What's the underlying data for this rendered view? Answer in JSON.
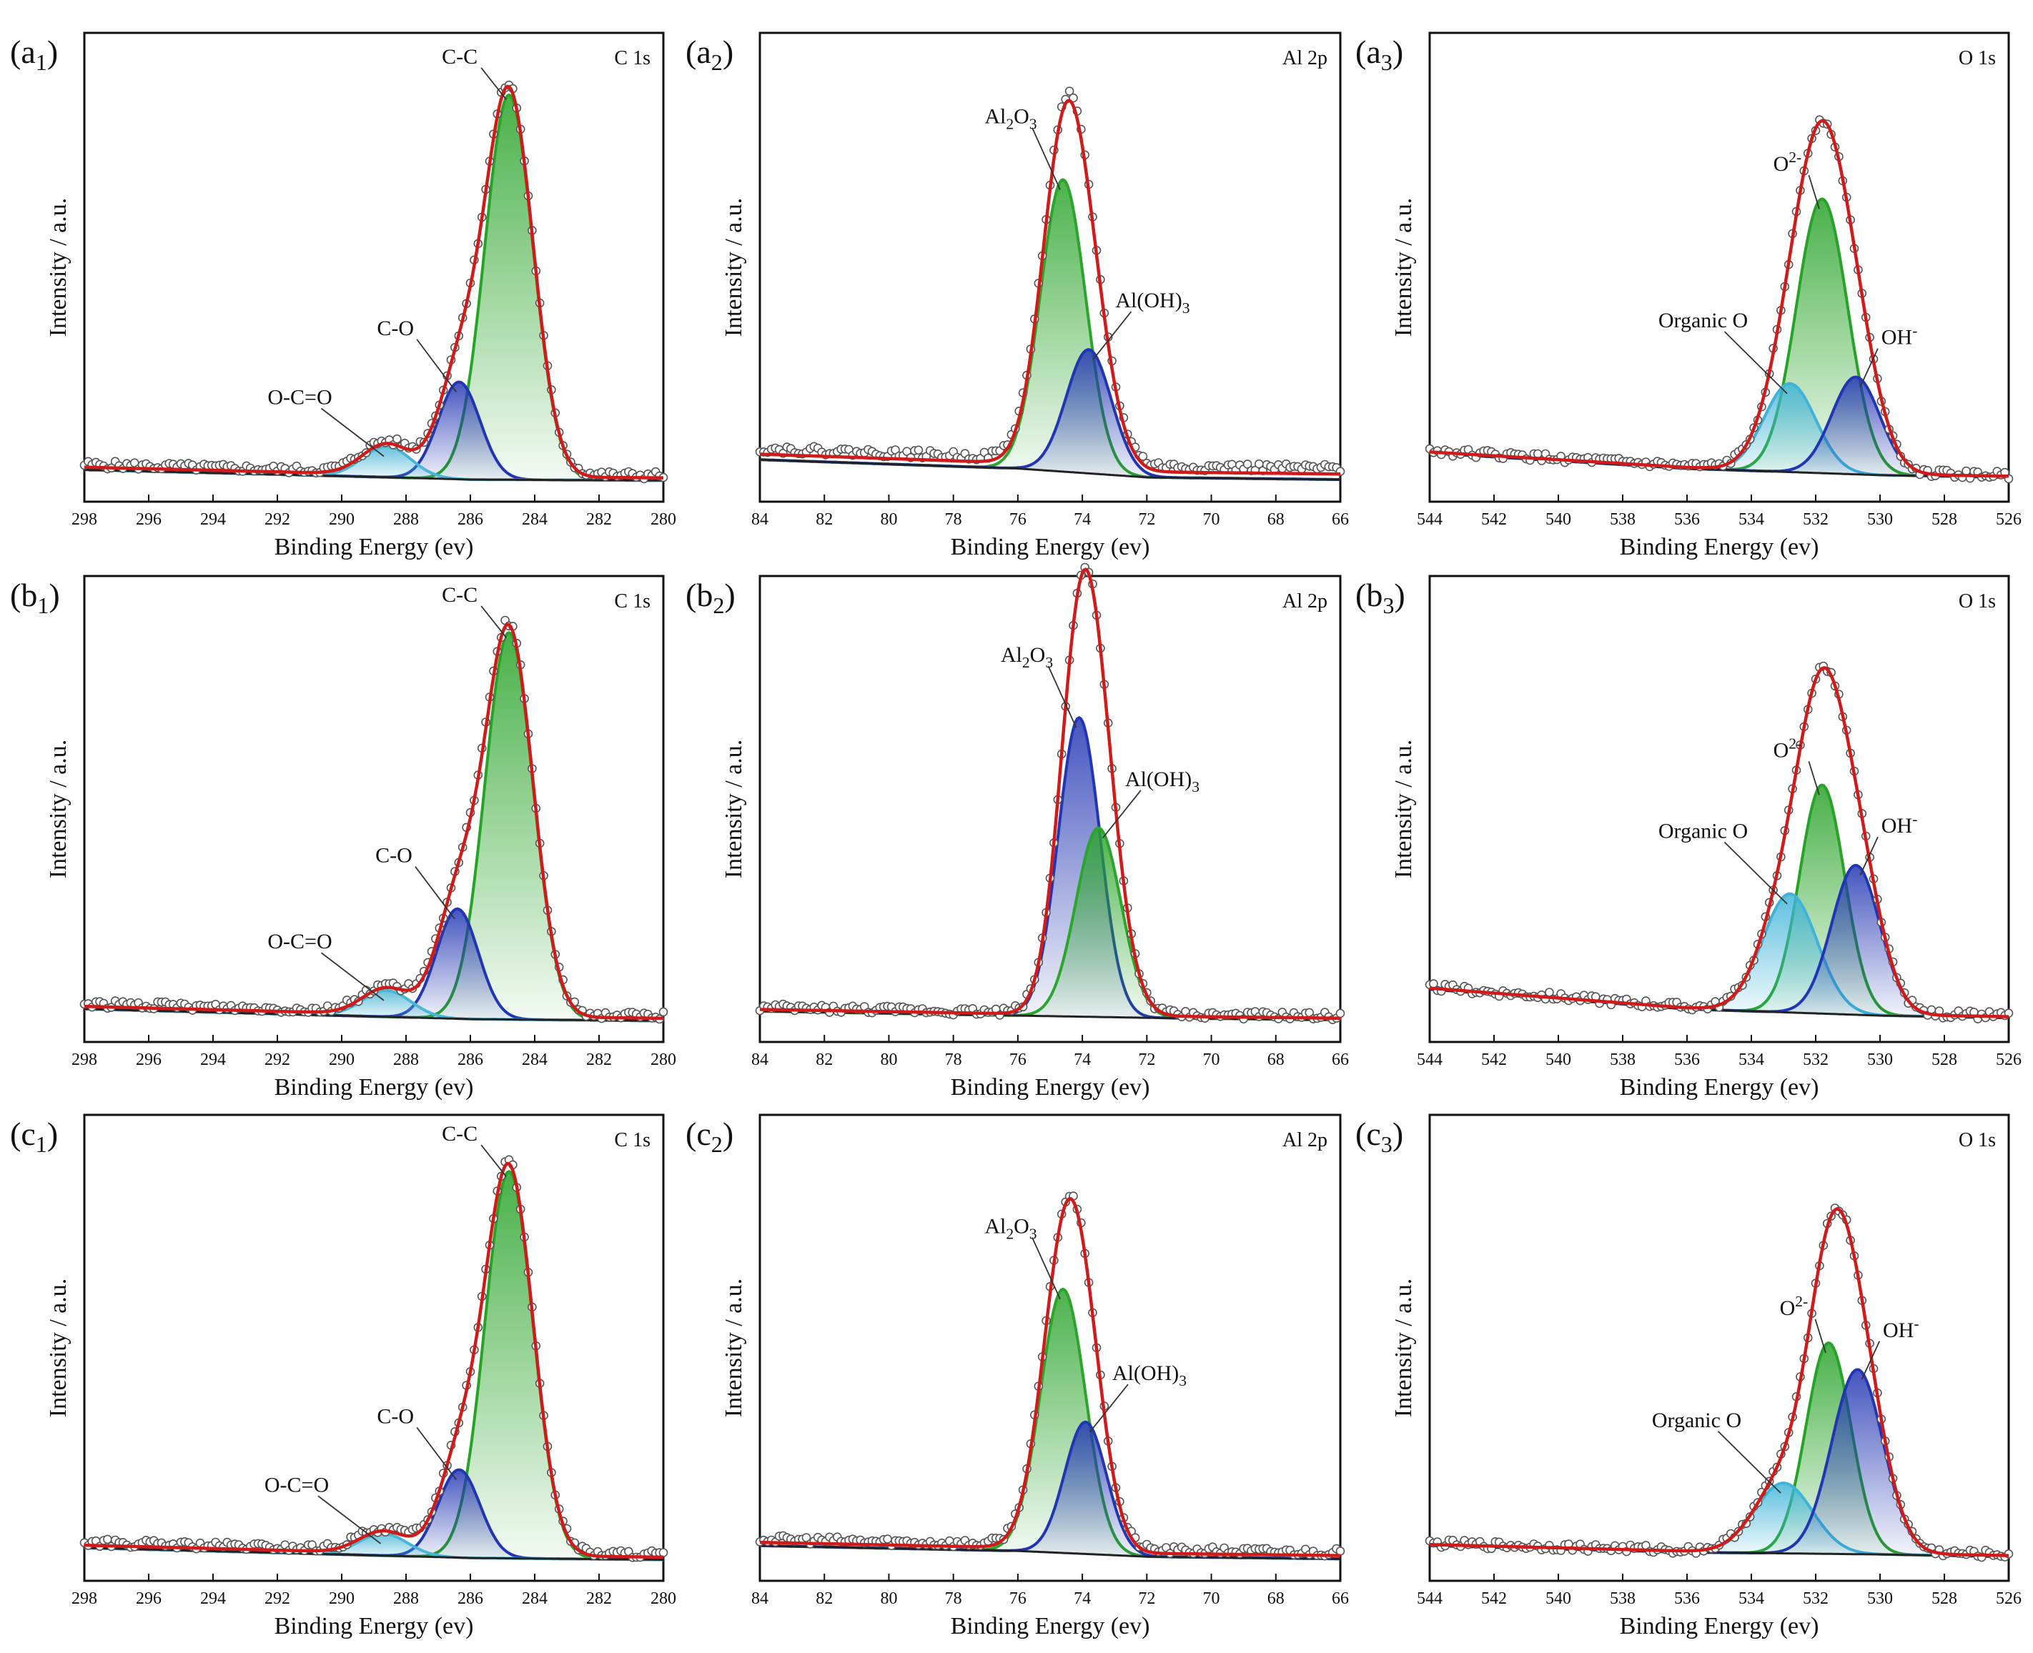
{
  "figure": {
    "xlabel": "Binding Energy (ev)",
    "ylabel": "Intensity / a.u."
  },
  "colors": {
    "envelope": "#d11a1a",
    "raw": "#555555",
    "background": "#222222",
    "cc": "#27a327",
    "co": "#2236b3",
    "oco": "#4ab6d6",
    "al2o3": "#2ba52b",
    "aloh": "#2236b3",
    "o2": "#27a327",
    "oh": "#2236b3",
    "organic": "#3fb4d8"
  },
  "chart_data": [
    {
      "id": "a1",
      "panel_label": "(a1)",
      "element": "C 1s",
      "type": "line",
      "xlim": [
        298,
        280
      ],
      "xticks": [
        298,
        296,
        294,
        292,
        290,
        288,
        286,
        284,
        282,
        280
      ],
      "baseline": [
        [
          298,
          0.012
        ],
        [
          290,
          -0.002
        ],
        [
          286,
          -0.01
        ],
        [
          280,
          -0.012
        ]
      ],
      "raw_offset": 0.012,
      "peaks": [
        {
          "name": "C-C",
          "center": 284.8,
          "height": 0.87,
          "sigma": 0.75,
          "color": "cc",
          "label": "C-C"
        },
        {
          "name": "C-O",
          "center": 286.35,
          "height": 0.22,
          "sigma": 0.65,
          "color": "co",
          "label": "C-O"
        },
        {
          "name": "O-C=O",
          "center": 288.6,
          "height": 0.07,
          "sigma": 0.75,
          "color": "oco",
          "label": "O-C=O"
        }
      ]
    },
    {
      "id": "a2",
      "panel_label": "(a2)",
      "element": "Al 2p",
      "type": "line",
      "xlim": [
        84,
        66
      ],
      "xticks": [
        84,
        82,
        80,
        78,
        76,
        74,
        72,
        70,
        68,
        66
      ],
      "baseline": [
        [
          84,
          0.035
        ],
        [
          76,
          0.015
        ],
        [
          72,
          -0.005
        ],
        [
          66,
          -0.01
        ]
      ],
      "raw_offset": 0.025,
      "peaks": [
        {
          "name": "Al2O3",
          "center": 74.6,
          "height": 0.66,
          "sigma": 0.7,
          "color": "al2o3",
          "label": "Al2O3"
        },
        {
          "name": "Al(OH)3",
          "center": 73.8,
          "height": 0.28,
          "sigma": 0.7,
          "color": "aloh",
          "label": "Al(OH)3"
        }
      ]
    },
    {
      "id": "a3",
      "panel_label": "(a3)",
      "element": "O 1s",
      "type": "line",
      "xlim": [
        544,
        526
      ],
      "xticks": [
        544,
        542,
        540,
        538,
        536,
        534,
        532,
        530,
        528,
        526
      ],
      "baseline": [
        [
          544,
          0.05
        ],
        [
          536,
          0.015
        ],
        [
          530,
          0.0
        ],
        [
          526,
          -0.005
        ]
      ],
      "raw_offset": 0.005,
      "peaks": [
        {
          "name": "O2-",
          "center": 531.8,
          "height": 0.62,
          "sigma": 0.8,
          "color": "o2",
          "label": "O2-"
        },
        {
          "name": "Organic O",
          "center": 532.8,
          "height": 0.2,
          "sigma": 0.8,
          "color": "organic",
          "label": "Organic O"
        },
        {
          "name": "OH-",
          "center": 530.75,
          "height": 0.22,
          "sigma": 0.75,
          "color": "oh",
          "label": "OH-"
        }
      ]
    },
    {
      "id": "b1",
      "panel_label": "(b1)",
      "element": "C 1s",
      "type": "line",
      "xlim": [
        298,
        280
      ],
      "xticks": [
        298,
        296,
        294,
        292,
        290,
        288,
        286,
        284,
        282,
        280
      ],
      "baseline": [
        [
          298,
          0.015
        ],
        [
          290,
          0.0
        ],
        [
          286,
          -0.008
        ],
        [
          280,
          -0.012
        ]
      ],
      "raw_offset": 0.012,
      "peaks": [
        {
          "name": "C-C",
          "center": 284.8,
          "height": 0.88,
          "sigma": 0.75,
          "color": "cc",
          "label": "C-C"
        },
        {
          "name": "C-O",
          "center": 286.4,
          "height": 0.25,
          "sigma": 0.65,
          "color": "co",
          "label": "C-O"
        },
        {
          "name": "O-C=O",
          "center": 288.6,
          "height": 0.06,
          "sigma": 0.75,
          "color": "oco",
          "label": "O-C=O"
        }
      ]
    },
    {
      "id": "b2",
      "panel_label": "(b2)",
      "element": "Al 2p",
      "type": "line",
      "xlim": [
        84,
        66
      ],
      "xticks": [
        84,
        82,
        80,
        78,
        76,
        74,
        72,
        70,
        68,
        66
      ],
      "baseline": [
        [
          84,
          0.01
        ],
        [
          76,
          0.0
        ],
        [
          72,
          -0.005
        ],
        [
          66,
          -0.01
        ]
      ],
      "raw_offset": 0.008,
      "peaks": [
        {
          "name": "Al2O3",
          "center": 74.1,
          "height": 0.68,
          "sigma": 0.65,
          "color": "aloh",
          "label": "Al2O3"
        },
        {
          "name": "Al(OH)3",
          "center": 73.5,
          "height": 0.43,
          "sigma": 0.7,
          "color": "al2o3",
          "label": "Al(OH)3"
        }
      ]
    },
    {
      "id": "b3",
      "panel_label": "(b3)",
      "element": "O 1s",
      "type": "line",
      "xlim": [
        544,
        526
      ],
      "xticks": [
        544,
        542,
        540,
        538,
        536,
        534,
        532,
        530,
        528,
        526
      ],
      "baseline": [
        [
          544,
          0.06
        ],
        [
          536,
          0.015
        ],
        [
          530,
          0.0
        ],
        [
          526,
          -0.005
        ]
      ],
      "raw_offset": 0.005,
      "peaks": [
        {
          "name": "O2-",
          "center": 531.8,
          "height": 0.52,
          "sigma": 0.7,
          "color": "o2",
          "label": "O2-"
        },
        {
          "name": "Organic O",
          "center": 532.8,
          "height": 0.27,
          "sigma": 0.85,
          "color": "organic",
          "label": "Organic O"
        },
        {
          "name": "OH-",
          "center": 530.75,
          "height": 0.34,
          "sigma": 0.75,
          "color": "oh",
          "label": "OH-"
        }
      ]
    },
    {
      "id": "c1",
      "panel_label": "(c1)",
      "element": "C 1s",
      "type": "line",
      "xlim": [
        298,
        280
      ],
      "xticks": [
        298,
        296,
        294,
        292,
        290,
        288,
        286,
        284,
        282,
        280
      ],
      "baseline": [
        [
          298,
          0.015
        ],
        [
          290,
          0.0
        ],
        [
          286,
          -0.008
        ],
        [
          280,
          -0.012
        ]
      ],
      "raw_offset": 0.012,
      "peaks": [
        {
          "name": "C-C",
          "center": 284.8,
          "height": 0.88,
          "sigma": 0.75,
          "color": "cc",
          "label": "C-C"
        },
        {
          "name": "C-O",
          "center": 286.35,
          "height": 0.2,
          "sigma": 0.65,
          "color": "co",
          "label": "C-O"
        },
        {
          "name": "O-C=O",
          "center": 288.7,
          "height": 0.05,
          "sigma": 0.75,
          "color": "oco",
          "label": "O-C=O"
        }
      ]
    },
    {
      "id": "c2",
      "panel_label": "(c2)",
      "element": "Al 2p",
      "type": "line",
      "xlim": [
        84,
        66
      ],
      "xticks": [
        84,
        82,
        80,
        78,
        76,
        74,
        72,
        70,
        68,
        66
      ],
      "baseline": [
        [
          84,
          0.02
        ],
        [
          76,
          0.008
        ],
        [
          72,
          -0.005
        ],
        [
          66,
          -0.01
        ]
      ],
      "raw_offset": 0.015,
      "peaks": [
        {
          "name": "Al2O3",
          "center": 74.6,
          "height": 0.6,
          "sigma": 0.7,
          "color": "al2o3",
          "label": "Al2O3"
        },
        {
          "name": "Al(OH)3",
          "center": 73.9,
          "height": 0.3,
          "sigma": 0.65,
          "color": "aloh",
          "label": "Al(OH)3"
        }
      ]
    },
    {
      "id": "c3",
      "panel_label": "(c3)",
      "element": "O 1s",
      "type": "line",
      "xlim": [
        544,
        526
      ],
      "xticks": [
        544,
        542,
        540,
        538,
        536,
        534,
        532,
        530,
        528,
        526
      ],
      "baseline": [
        [
          544,
          0.02
        ],
        [
          536,
          0.005
        ],
        [
          530,
          0.0
        ],
        [
          526,
          -0.005
        ]
      ],
      "raw_offset": 0.005,
      "peaks": [
        {
          "name": "O2-",
          "center": 531.6,
          "height": 0.48,
          "sigma": 0.7,
          "color": "o2",
          "label": "O2-"
        },
        {
          "name": "Organic O",
          "center": 533.0,
          "height": 0.16,
          "sigma": 0.9,
          "color": "organic",
          "label": "Organic O"
        },
        {
          "name": "OH-",
          "center": 530.7,
          "height": 0.42,
          "sigma": 0.8,
          "color": "oh",
          "label": "OH-"
        }
      ]
    }
  ]
}
